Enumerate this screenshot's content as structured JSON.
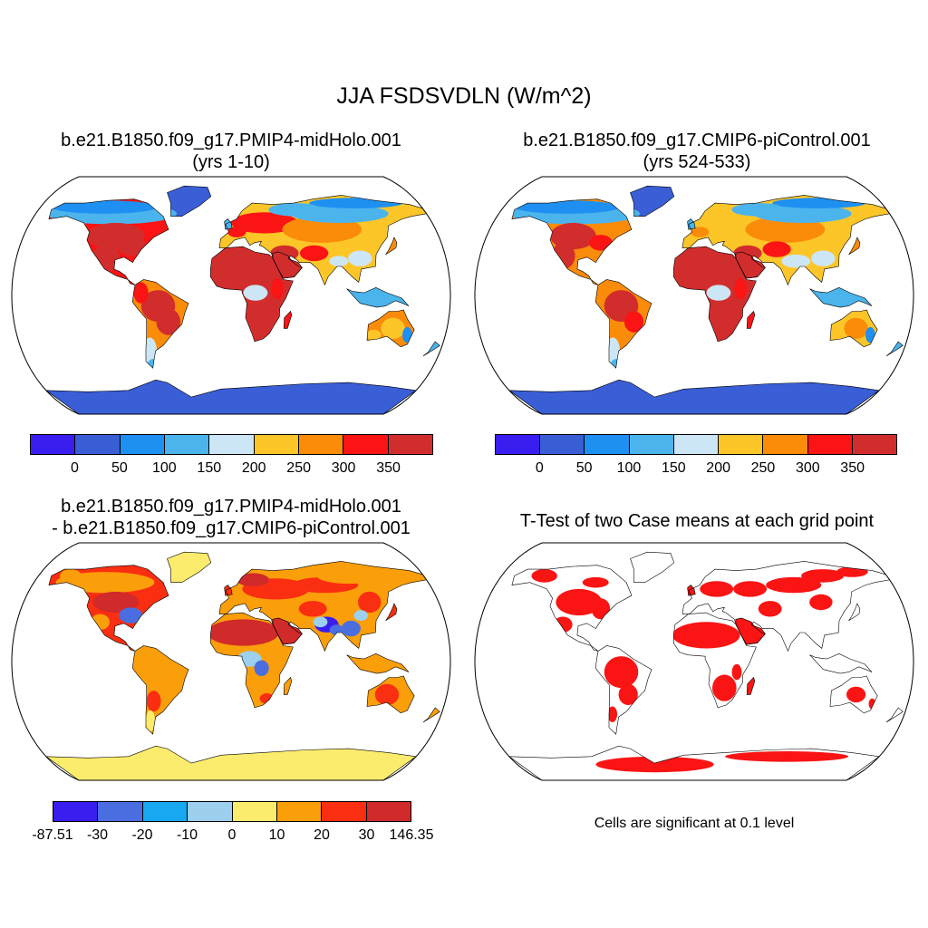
{
  "title": "JJA FSDSVDLN (W/m^2)",
  "panels": [
    {
      "id": "case1",
      "title_line1": "b.e21.B1850.f09_g17.PMIP4-midHolo.001",
      "title_line2": "(yrs 1-10)",
      "colorbar": {
        "colors": [
          "#3a1ef0",
          "#3a5ed6",
          "#1e90f2",
          "#4cb4ec",
          "#cde6f6",
          "#fcc628",
          "#fb8c0a",
          "#fa1414",
          "#d22d2d"
        ],
        "labels": [
          "0",
          "50",
          "100",
          "150",
          "200",
          "250",
          "300",
          "350"
        ]
      }
    },
    {
      "id": "case2",
      "title_line1": "b.e21.B1850.f09_g17.CMIP6-piControl.001",
      "title_line2": "(yrs 524-533)",
      "colorbar": {
        "colors": [
          "#3a1ef0",
          "#3a5ed6",
          "#1e90f2",
          "#4cb4ec",
          "#cde6f6",
          "#fcc628",
          "#fb8c0a",
          "#fa1414",
          "#d22d2d"
        ],
        "labels": [
          "0",
          "50",
          "100",
          "150",
          "200",
          "250",
          "300",
          "350"
        ]
      }
    },
    {
      "id": "diff",
      "title_line1": "b.e21.B1850.f09_g17.PMIP4-midHolo.001",
      "title_line2": "- b.e21.B1850.f09_g17.CMIP6-piControl.001",
      "colorbar": {
        "colors": [
          "#3a1ef0",
          "#4a6ee0",
          "#18a8f0",
          "#9cd0ee",
          "#fcec6e",
          "#fa9e0a",
          "#fa2e10",
          "#d02a2a"
        ],
        "labels": [
          "-87.51",
          "-30",
          "-20",
          "-10",
          "0",
          "10",
          "20",
          "30",
          "146.35"
        ]
      }
    },
    {
      "id": "ttest",
      "title_line1": "T-Test of two Case means at each grid point",
      "note": "Cells are significant at 0.1 level"
    }
  ]
}
